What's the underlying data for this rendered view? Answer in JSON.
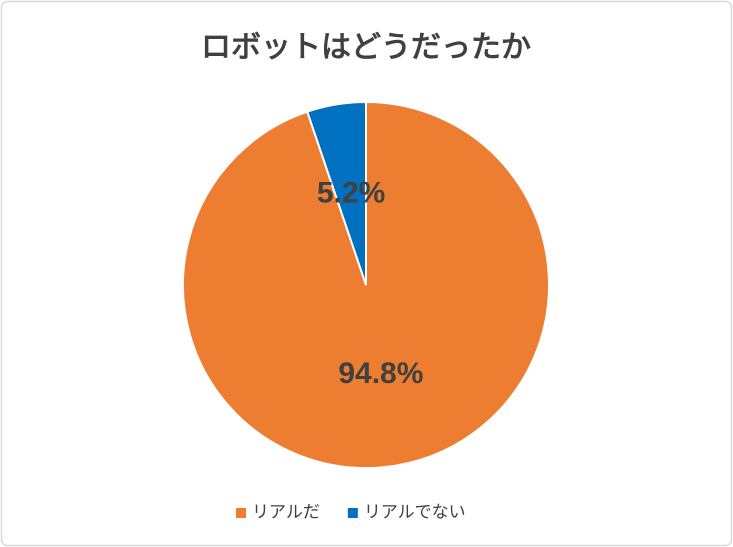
{
  "chart_data": {
    "type": "pie",
    "title": "ロボットはどうだったか",
    "categories": [
      "リアルだ",
      "リアルでない"
    ],
    "values": [
      94.8,
      5.2
    ],
    "value_labels": [
      "94.8%",
      "5.2%"
    ],
    "colors": [
      "#ED7D31",
      "#0070C0"
    ],
    "legend": "bottom"
  }
}
